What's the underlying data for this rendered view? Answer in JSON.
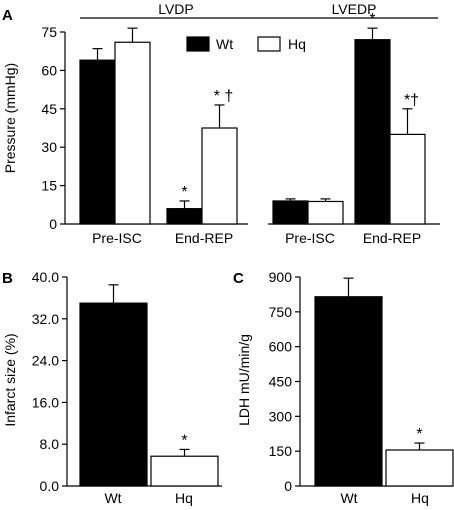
{
  "chart_data": [
    {
      "type": "bar",
      "panel": "A",
      "groups": [
        "LVDP",
        "LVEDP"
      ],
      "categories": [
        "Pre-ISC",
        "End-REP"
      ],
      "ylabel": "Pressure (mmHg)",
      "ylim": [
        0,
        75
      ],
      "yticks": [
        "0",
        "15",
        "30",
        "45",
        "60",
        "75"
      ],
      "legend": {
        "position": "top-right",
        "entries": [
          "Wt",
          "Hq"
        ]
      },
      "series": [
        {
          "name": "Wt",
          "fill": "#000000",
          "values": {
            "LVDP": [
              64,
              6
            ],
            "LVEDP": [
              9,
              72
            ]
          },
          "errors": {
            "LVDP": [
              4.5,
              3
            ],
            "LVEDP": [
              0.8,
              4.5
            ]
          }
        },
        {
          "name": "Hq",
          "fill": "#ffffff",
          "values": {
            "LVDP": [
              71,
              37.5
            ],
            "LVEDP": [
              8.8,
              35
            ]
          },
          "errors": {
            "LVDP": [
              5.5,
              9
            ],
            "LVEDP": [
              1,
              10
            ]
          }
        }
      ],
      "annotations": [
        {
          "group": "LVDP",
          "category": "End-REP",
          "series": "Wt",
          "text": "*"
        },
        {
          "group": "LVDP",
          "category": "End-REP",
          "series": "Hq",
          "text": "* †"
        },
        {
          "group": "LVEDP",
          "category": "End-REP",
          "series": "Wt",
          "text": "*"
        },
        {
          "group": "LVEDP",
          "category": "End-REP",
          "series": "Hq",
          "text": "*†"
        }
      ]
    },
    {
      "type": "bar",
      "panel": "B",
      "categories": [
        "Wt",
        "Hq"
      ],
      "ylabel": "Infarct size (%)",
      "ylim": [
        0,
        40
      ],
      "yticks": [
        "0.0",
        "8.0",
        "16.0",
        "24.0",
        "32.0",
        "40.0"
      ],
      "values": [
        35,
        5.7
      ],
      "errors": [
        3.5,
        1.3
      ],
      "fills": [
        "#000000",
        "#ffffff"
      ],
      "annotations": [
        {
          "category": "Hq",
          "text": "*"
        }
      ]
    },
    {
      "type": "bar",
      "panel": "C",
      "categories": [
        "Wt",
        "Hq"
      ],
      "ylabel": "LDH mU/min/g",
      "ylim": [
        0,
        900
      ],
      "yticks": [
        "0",
        "150",
        "300",
        "450",
        "600",
        "750",
        "900"
      ],
      "values": [
        815,
        155
      ],
      "errors": [
        80,
        30
      ],
      "fills": [
        "#000000",
        "#ffffff"
      ],
      "annotations": [
        {
          "category": "Hq",
          "text": "*"
        }
      ]
    }
  ]
}
